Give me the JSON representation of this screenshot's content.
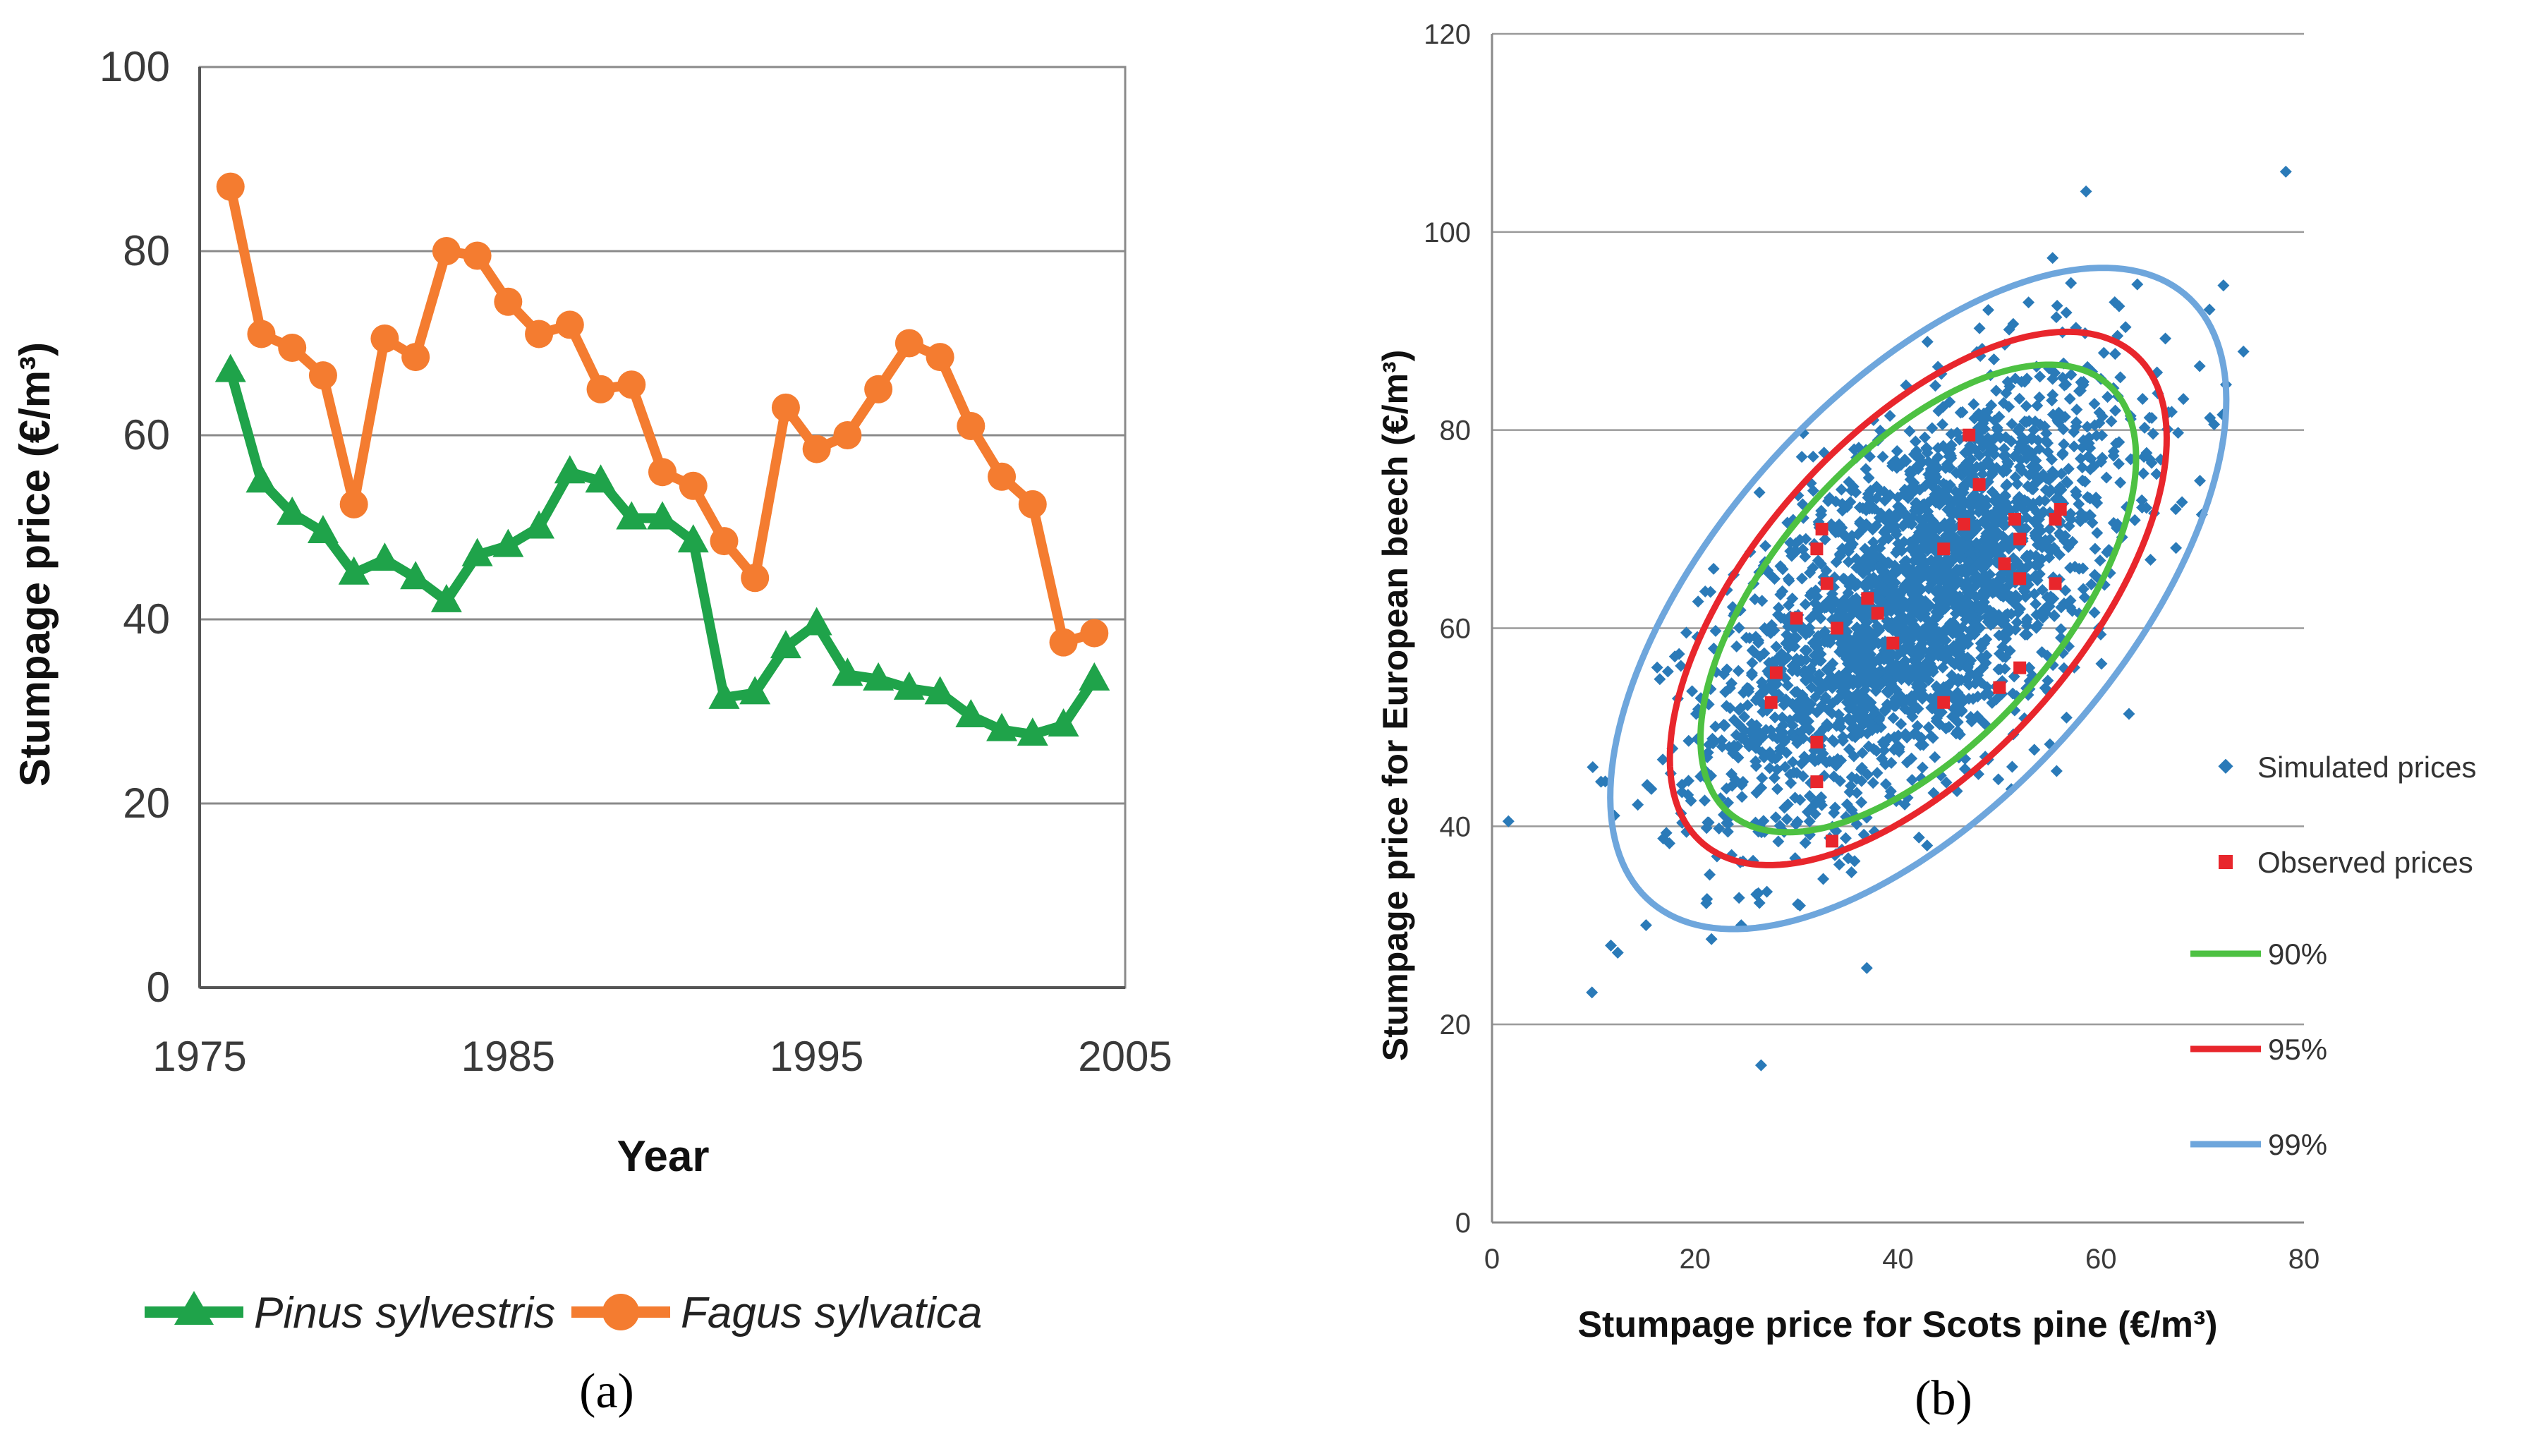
{
  "chart_data": [
    {
      "type": "line",
      "panel_label": "(a)",
      "xlabel": "Year",
      "ylabel": "Stumpage price (€/m³)",
      "xlim": [
        1975,
        2005
      ],
      "ylim": [
        0,
        100
      ],
      "xticks": [
        "1975",
        "1985",
        "1995",
        "2005"
      ],
      "yticks": [
        "0",
        "20",
        "40",
        "60",
        "80",
        "100"
      ],
      "grid": "horizontal",
      "legend_position": "bottom",
      "x": [
        1976,
        1977,
        1978,
        1979,
        1980,
        1981,
        1982,
        1983,
        1984,
        1985,
        1986,
        1987,
        1988,
        1989,
        1990,
        1991,
        1992,
        1993,
        1994,
        1995,
        1996,
        1997,
        1998,
        1999,
        2000,
        2001,
        2002,
        2003,
        2004
      ],
      "series": [
        {
          "name": "Pinus sylvestris",
          "color": "#1fa34a",
          "marker": "triangle",
          "values": [
            67,
            55,
            51.5,
            49.5,
            45,
            46.5,
            44.5,
            42,
            47,
            48,
            50,
            56,
            55,
            51,
            51,
            48.5,
            31.5,
            32,
            37,
            39.5,
            34,
            33.5,
            32.5,
            32,
            29.5,
            28,
            27.5,
            28.5,
            33.5
          ]
        },
        {
          "name": "Fagus sylvatica",
          "color": "#f47c30",
          "marker": "circle",
          "values": [
            87,
            71,
            69.5,
            66.5,
            52.5,
            70.5,
            68.5,
            80,
            79.5,
            74.5,
            71,
            72,
            65,
            65.5,
            56,
            54.5,
            48.5,
            44.5,
            63,
            58.5,
            60,
            65,
            70,
            68.5,
            61,
            55.5,
            52.5,
            37.5,
            38.5
          ]
        }
      ]
    },
    {
      "type": "scatter",
      "panel_label": "(b)",
      "xlabel": "Stumpage price for Scots pine (€/m³)",
      "ylabel": "Stumpage price for European beech (€/m³)",
      "xlim": [
        0,
        80
      ],
      "ylim": [
        0,
        120
      ],
      "xticks": [
        "0",
        "20",
        "40",
        "60",
        "80"
      ],
      "yticks": [
        "0",
        "20",
        "40",
        "60",
        "80",
        "100",
        "120"
      ],
      "grid": "horizontal",
      "legend_position": "right",
      "simulated": {
        "name": "Simulated prices",
        "color": "#2a7ab8",
        "n": 2500,
        "mean_x": 42,
        "mean_y": 63,
        "sd_x": 10,
        "sd_y": 11,
        "corr": 0.6
      },
      "observed": {
        "name": "Observed prices",
        "color": "#e8262c",
        "points": [
          [
            47,
            79.5
          ],
          [
            48,
            74.5
          ],
          [
            46.5,
            70.5
          ],
          [
            51.5,
            71
          ],
          [
            56,
            72
          ],
          [
            55.5,
            71
          ],
          [
            52,
            69
          ],
          [
            44.5,
            68
          ],
          [
            32.5,
            70
          ],
          [
            32,
            68
          ],
          [
            33,
            64.5
          ],
          [
            37,
            63
          ],
          [
            38,
            61.5
          ],
          [
            30,
            61
          ],
          [
            34,
            60
          ],
          [
            39.5,
            58.5
          ],
          [
            28,
            55.5
          ],
          [
            50.5,
            66.5
          ],
          [
            52,
            65
          ],
          [
            55.5,
            64.5
          ],
          [
            52,
            56
          ],
          [
            50,
            54
          ],
          [
            44.5,
            52.5
          ],
          [
            27.5,
            52.5
          ],
          [
            32,
            48.5
          ],
          [
            32,
            44.5
          ],
          [
            33.5,
            38.5
          ]
        ]
      },
      "ellipses": [
        {
          "name": "90%",
          "color": "#4dc142"
        },
        {
          "name": "95%",
          "color": "#e8262c"
        },
        {
          "name": "99%",
          "color": "#6ea6dc"
        }
      ]
    }
  ]
}
